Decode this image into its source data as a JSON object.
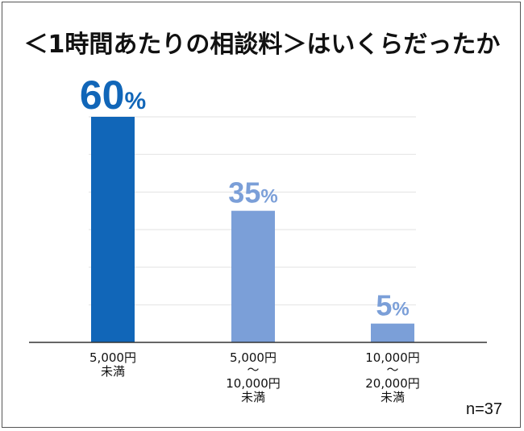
{
  "chart_data": {
    "type": "bar",
    "title": "＜1時間あたりの相談料＞はいくらだったか",
    "categories": [
      [
        "5,000円",
        "未満"
      ],
      [
        "5,000円",
        "～",
        "10,000円",
        "未満"
      ],
      [
        "10,000円",
        "～",
        "20,000円",
        "未満"
      ]
    ],
    "values": [
      60,
      35,
      5
    ],
    "value_labels": [
      "60",
      "35",
      "5"
    ],
    "unit": "%",
    "ylim": [
      0,
      60
    ],
    "grid": true,
    "xlabel": "",
    "ylabel": "",
    "colors": [
      "#1166b8",
      "#7b9fd8",
      "#7b9fd8"
    ],
    "label_colors": [
      "#1166b8",
      "#7b9fd8",
      "#7b9fd8"
    ]
  },
  "sample_size": "n=37"
}
